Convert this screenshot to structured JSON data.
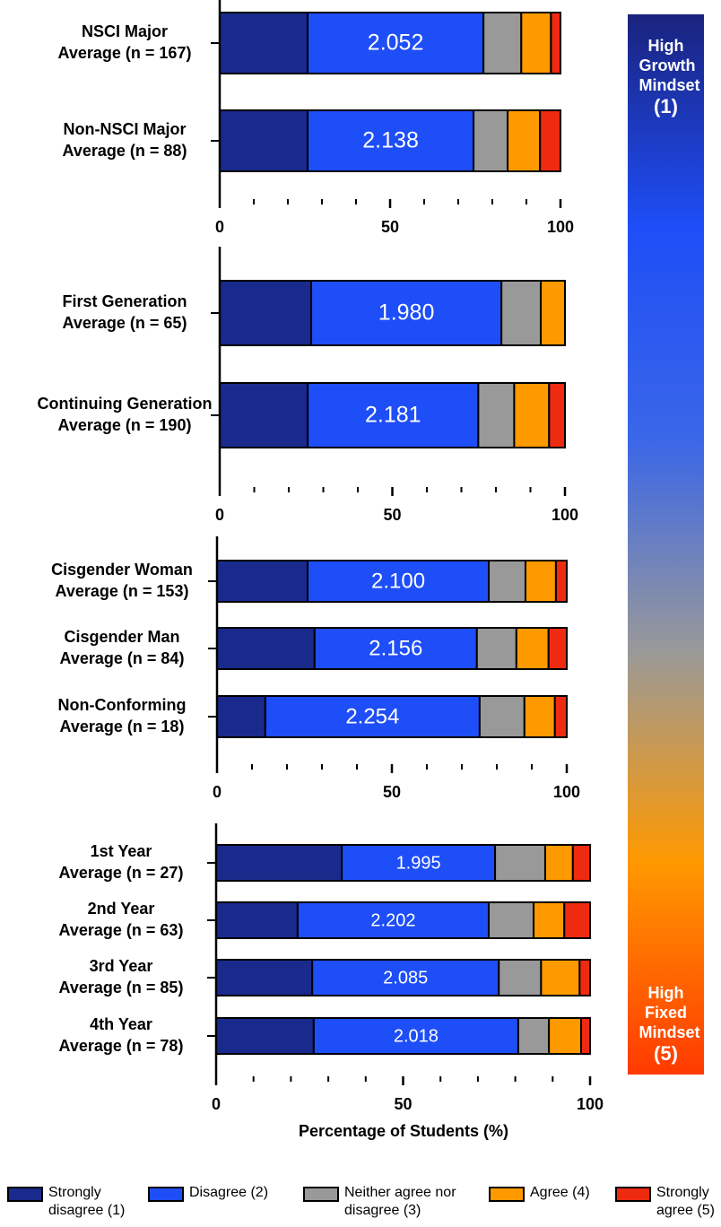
{
  "chart_data": [
    {
      "type": "stacked-barh",
      "categories": [
        [
          "NSCI Major",
          "Average (n = 167)"
        ],
        [
          "Non-NSCI Major",
          "Average (n = 88)"
        ]
      ],
      "averages": [
        "2.052",
        "2.138"
      ],
      "series": [
        {
          "name": "Strongly disagree (1)",
          "color": "#1a2a8c",
          "values": [
            25.8,
            25.8
          ]
        },
        {
          "name": "Disagree (2)",
          "color": "#1e4ef7",
          "values": [
            51.6,
            48.7
          ]
        },
        {
          "name": "Neither agree nor disagree (3)",
          "color": "#999999",
          "values": [
            11.1,
            10.0
          ]
        },
        {
          "name": "Agree (4)",
          "color": "#ff9900",
          "values": [
            8.7,
            9.5
          ]
        },
        {
          "name": "Strongly agree (5)",
          "color": "#ee2a10",
          "values": [
            2.8,
            6.0
          ]
        }
      ],
      "xlim": [
        0,
        100
      ],
      "xticks": [
        0,
        50,
        100
      ],
      "xminorticks": [
        10,
        20,
        30,
        40,
        60,
        70,
        80,
        90
      ]
    },
    {
      "type": "stacked-barh",
      "categories": [
        [
          "First Generation",
          "Average (n = 65)"
        ],
        [
          "Continuing Generation",
          "Average (n = 190)"
        ]
      ],
      "averages": [
        "1.980",
        "2.181"
      ],
      "series": [
        {
          "name": "Strongly disagree (1)",
          "color": "#1a2a8c",
          "values": [
            26.5,
            25.5
          ]
        },
        {
          "name": "Disagree (2)",
          "color": "#1e4ef7",
          "values": [
            55.1,
            49.4
          ]
        },
        {
          "name": "Neither agree nor disagree (3)",
          "color": "#999999",
          "values": [
            11.4,
            10.4
          ]
        },
        {
          "name": "Agree (4)",
          "color": "#ff9900",
          "values": [
            7.0,
            10.1
          ]
        },
        {
          "name": "Strongly agree (5)",
          "color": "#ee2a10",
          "values": [
            0,
            4.6
          ]
        }
      ],
      "xlim": [
        0,
        100
      ],
      "xticks": [
        0,
        50,
        100
      ],
      "xminorticks": [
        10,
        20,
        30,
        40,
        60,
        70,
        80,
        90
      ]
    },
    {
      "type": "stacked-barh",
      "categories": [
        [
          "Cisgender Woman",
          "Average (n = 153)"
        ],
        [
          "Cisgender Man",
          "Average (n = 84)"
        ],
        [
          "Non-Conforming",
          "Average (n = 18)"
        ]
      ],
      "averages": [
        "2.100",
        "2.156",
        "2.254"
      ],
      "series": [
        {
          "name": "Strongly disagree (1)",
          "color": "#1a2a8c",
          "values": [
            25.9,
            27.9,
            13.8
          ]
        },
        {
          "name": "Disagree (2)",
          "color": "#1e4ef7",
          "values": [
            51.8,
            46.4,
            61.3
          ]
        },
        {
          "name": "Neither agree nor disagree (3)",
          "color": "#999999",
          "values": [
            10.5,
            11.3,
            12.8
          ]
        },
        {
          "name": "Agree (4)",
          "color": "#ff9900",
          "values": [
            8.7,
            9.2,
            8.7
          ]
        },
        {
          "name": "Strongly agree (5)",
          "color": "#ee2a10",
          "values": [
            3.1,
            5.2,
            3.4
          ]
        }
      ],
      "xlim": [
        0,
        100
      ],
      "xticks": [
        0,
        50,
        100
      ],
      "xminorticks": [
        10,
        20,
        30,
        40,
        60,
        70,
        80,
        90
      ]
    },
    {
      "type": "stacked-barh",
      "categories": [
        [
          "1st Year",
          "Average (n = 27)"
        ],
        [
          "2nd Year",
          "Average (n = 63)"
        ],
        [
          "3rd Year",
          "Average (n = 85)"
        ],
        [
          "4th Year",
          "Average (n = 78)"
        ]
      ],
      "averages": [
        "1.995",
        "2.202",
        "2.085",
        "2.018"
      ],
      "series": [
        {
          "name": "Strongly disagree (1)",
          "color": "#1a2a8c",
          "values": [
            33.6,
            21.8,
            25.7,
            26.1
          ]
        },
        {
          "name": "Disagree (2)",
          "color": "#1e4ef7",
          "values": [
            41.0,
            51.1,
            49.9,
            54.7
          ]
        },
        {
          "name": "Neither agree nor disagree (3)",
          "color": "#999999",
          "values": [
            13.4,
            12.0,
            11.3,
            8.2
          ]
        },
        {
          "name": "Agree (4)",
          "color": "#ff9900",
          "values": [
            7.4,
            8.2,
            10.3,
            8.6
          ]
        },
        {
          "name": "Strongly agree (5)",
          "color": "#ee2a10",
          "values": [
            4.6,
            6.9,
            2.8,
            2.4
          ]
        }
      ],
      "xlim": [
        0,
        100
      ],
      "xticks": [
        0,
        50,
        100
      ],
      "xminorticks": [
        10,
        20,
        30,
        40,
        60,
        70,
        80,
        90
      ],
      "xlabel": "Percentage of Students (%)"
    }
  ],
  "colorbar": {
    "top_label": "High Growth Mindset",
    "top_value": "(1)",
    "bottom_label": "High Fixed Mindset",
    "bottom_value": "(5)",
    "colors": [
      "#1a237e",
      "#1e4ef7",
      "#3a66e8",
      "#999999",
      "#ff9900",
      "#ff3a00"
    ]
  }
}
